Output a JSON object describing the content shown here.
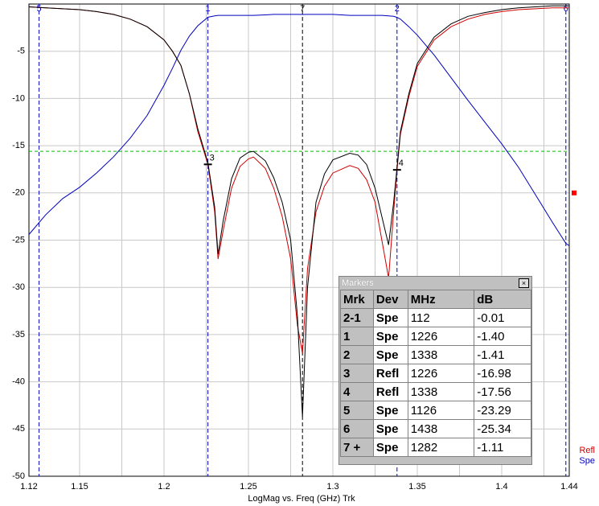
{
  "chart_data": {
    "type": "line",
    "xlabel": "LogMag vs. Freq (GHz)  Trk",
    "x": [
      1.12,
      1.13,
      1.14,
      1.15,
      1.16,
      1.17,
      1.18,
      1.19,
      1.2,
      1.205,
      1.21,
      1.215,
      1.22,
      1.226,
      1.23,
      1.232,
      1.235,
      1.24,
      1.245,
      1.25,
      1.253,
      1.26,
      1.265,
      1.27,
      1.275,
      1.279,
      1.282,
      1.285,
      1.29,
      1.295,
      1.3,
      1.31,
      1.315,
      1.32,
      1.325,
      1.329,
      1.333,
      1.336,
      1.338,
      1.34,
      1.345,
      1.35,
      1.36,
      1.37,
      1.38,
      1.39,
      1.4,
      1.41,
      1.42,
      1.43,
      1.438,
      1.44
    ],
    "series": [
      {
        "name": "Spe",
        "color": "#0000c0",
        "values": [
          -24.4,
          -22.3,
          -20.6,
          -19.4,
          -17.9,
          -16.2,
          -14.2,
          -11.8,
          -8.6,
          -6.8,
          -4.9,
          -3.4,
          -2.3,
          -1.4,
          -1.25,
          -1.2,
          -1.2,
          -1.2,
          -1.2,
          -1.2,
          -1.2,
          -1.15,
          -1.1,
          -1.1,
          -1.1,
          -1.1,
          -1.11,
          -1.1,
          -1.1,
          -1.1,
          -1.1,
          -1.2,
          -1.2,
          -1.2,
          -1.2,
          -1.2,
          -1.25,
          -1.3,
          -1.41,
          -1.6,
          -2.4,
          -3.3,
          -5.4,
          -7.8,
          -10.2,
          -12.5,
          -14.8,
          -17.3,
          -20.2,
          -23.1,
          -25.34,
          -25.6
        ]
      },
      {
        "name": "Refl",
        "color": "#d00000",
        "values": [
          -0.3,
          -0.4,
          -0.5,
          -0.6,
          -0.8,
          -1.1,
          -1.6,
          -2.4,
          -3.8,
          -5,
          -6.5,
          -9.5,
          -13.5,
          -16.98,
          -22,
          -27,
          -24,
          -19.5,
          -17.2,
          -16.4,
          -16.2,
          -17.4,
          -19.5,
          -22.5,
          -27,
          -34,
          -37,
          -28,
          -22,
          -19.3,
          -17.9,
          -17.1,
          -17.4,
          -18.6,
          -21,
          -25,
          -29,
          -22,
          -17.56,
          -13.8,
          -9.8,
          -6.6,
          -3.8,
          -2.4,
          -1.6,
          -1.1,
          -0.8,
          -0.6,
          -0.5,
          -0.4,
          -0.4,
          -0.4
        ]
      },
      {
        "name": null,
        "color": "#000000",
        "values": [
          -0.3,
          -0.4,
          -0.5,
          -0.6,
          -0.8,
          -1.1,
          -1.6,
          -2.4,
          -3.8,
          -5,
          -6.5,
          -9.5,
          -13.2,
          -16.8,
          -21.5,
          -26.5,
          -23,
          -18.5,
          -16.3,
          -15.7,
          -15.6,
          -16.6,
          -18.4,
          -21,
          -25,
          -33,
          -43.7,
          -30,
          -21,
          -18,
          -16.5,
          -15.8,
          -16,
          -17,
          -19.5,
          -22.5,
          -25.5,
          -21,
          -17.3,
          -13.5,
          -9.5,
          -6.3,
          -3.5,
          -2.1,
          -1.3,
          -0.9,
          -0.6,
          -0.4,
          -0.3,
          -0.2,
          -0.2,
          -0.2
        ]
      }
    ],
    "xlim": [
      1.12,
      1.44
    ],
    "ylim": [
      -50,
      0
    ],
    "xticks": [
      1.12,
      1.15,
      1.2,
      1.25,
      1.3,
      1.35,
      1.4,
      1.44
    ],
    "x_minor_grid": [
      1.175,
      1.225,
      1.275,
      1.325,
      1.375,
      1.425
    ],
    "yticks": [
      -5,
      -10,
      -15,
      -20,
      -25,
      -30,
      -35,
      -40,
      -45,
      -50
    ],
    "grid": true,
    "legend": "lower right",
    "markers": [
      {
        "label": "5",
        "x": 1.126,
        "color": "#0000c0"
      },
      {
        "label": "1",
        "x": 1.226,
        "color": "#0000c0"
      },
      {
        "label": "7",
        "x": 1.282,
        "color": "#000000"
      },
      {
        "label": "2",
        "x": 1.338,
        "color": "#0000c0"
      },
      {
        "label": "6",
        "x": 1.438,
        "color": "#0000c0"
      }
    ],
    "trace_markers": [
      {
        "label": "3",
        "x": 1.226,
        "y": -16.98
      },
      {
        "label": "4",
        "x": 1.338,
        "y": -17.56
      }
    ],
    "limit_line": {
      "y": -15.6,
      "color": "#00c000"
    },
    "reference_marker": {
      "y": -20,
      "color": "#ff0000"
    }
  },
  "markers_panel": {
    "title": "Markers",
    "columns": [
      "Mrk",
      "Dev",
      "MHz",
      "dB"
    ],
    "rows": [
      [
        "2-1",
        "Spe",
        "112",
        "-0.01"
      ],
      [
        "1",
        "Spe",
        "1226",
        "-1.40"
      ],
      [
        "2",
        "Spe",
        "1338",
        "-1.41"
      ],
      [
        "3",
        "Refl",
        "1226",
        "-16.98"
      ],
      [
        "4",
        "Refl",
        "1338",
        "-17.56"
      ],
      [
        "5",
        "Spe",
        "1126",
        "-23.29"
      ],
      [
        "6",
        "Spe",
        "1438",
        "-25.34"
      ],
      [
        "7 +",
        "Spe",
        "1282",
        "-1.11"
      ]
    ]
  }
}
